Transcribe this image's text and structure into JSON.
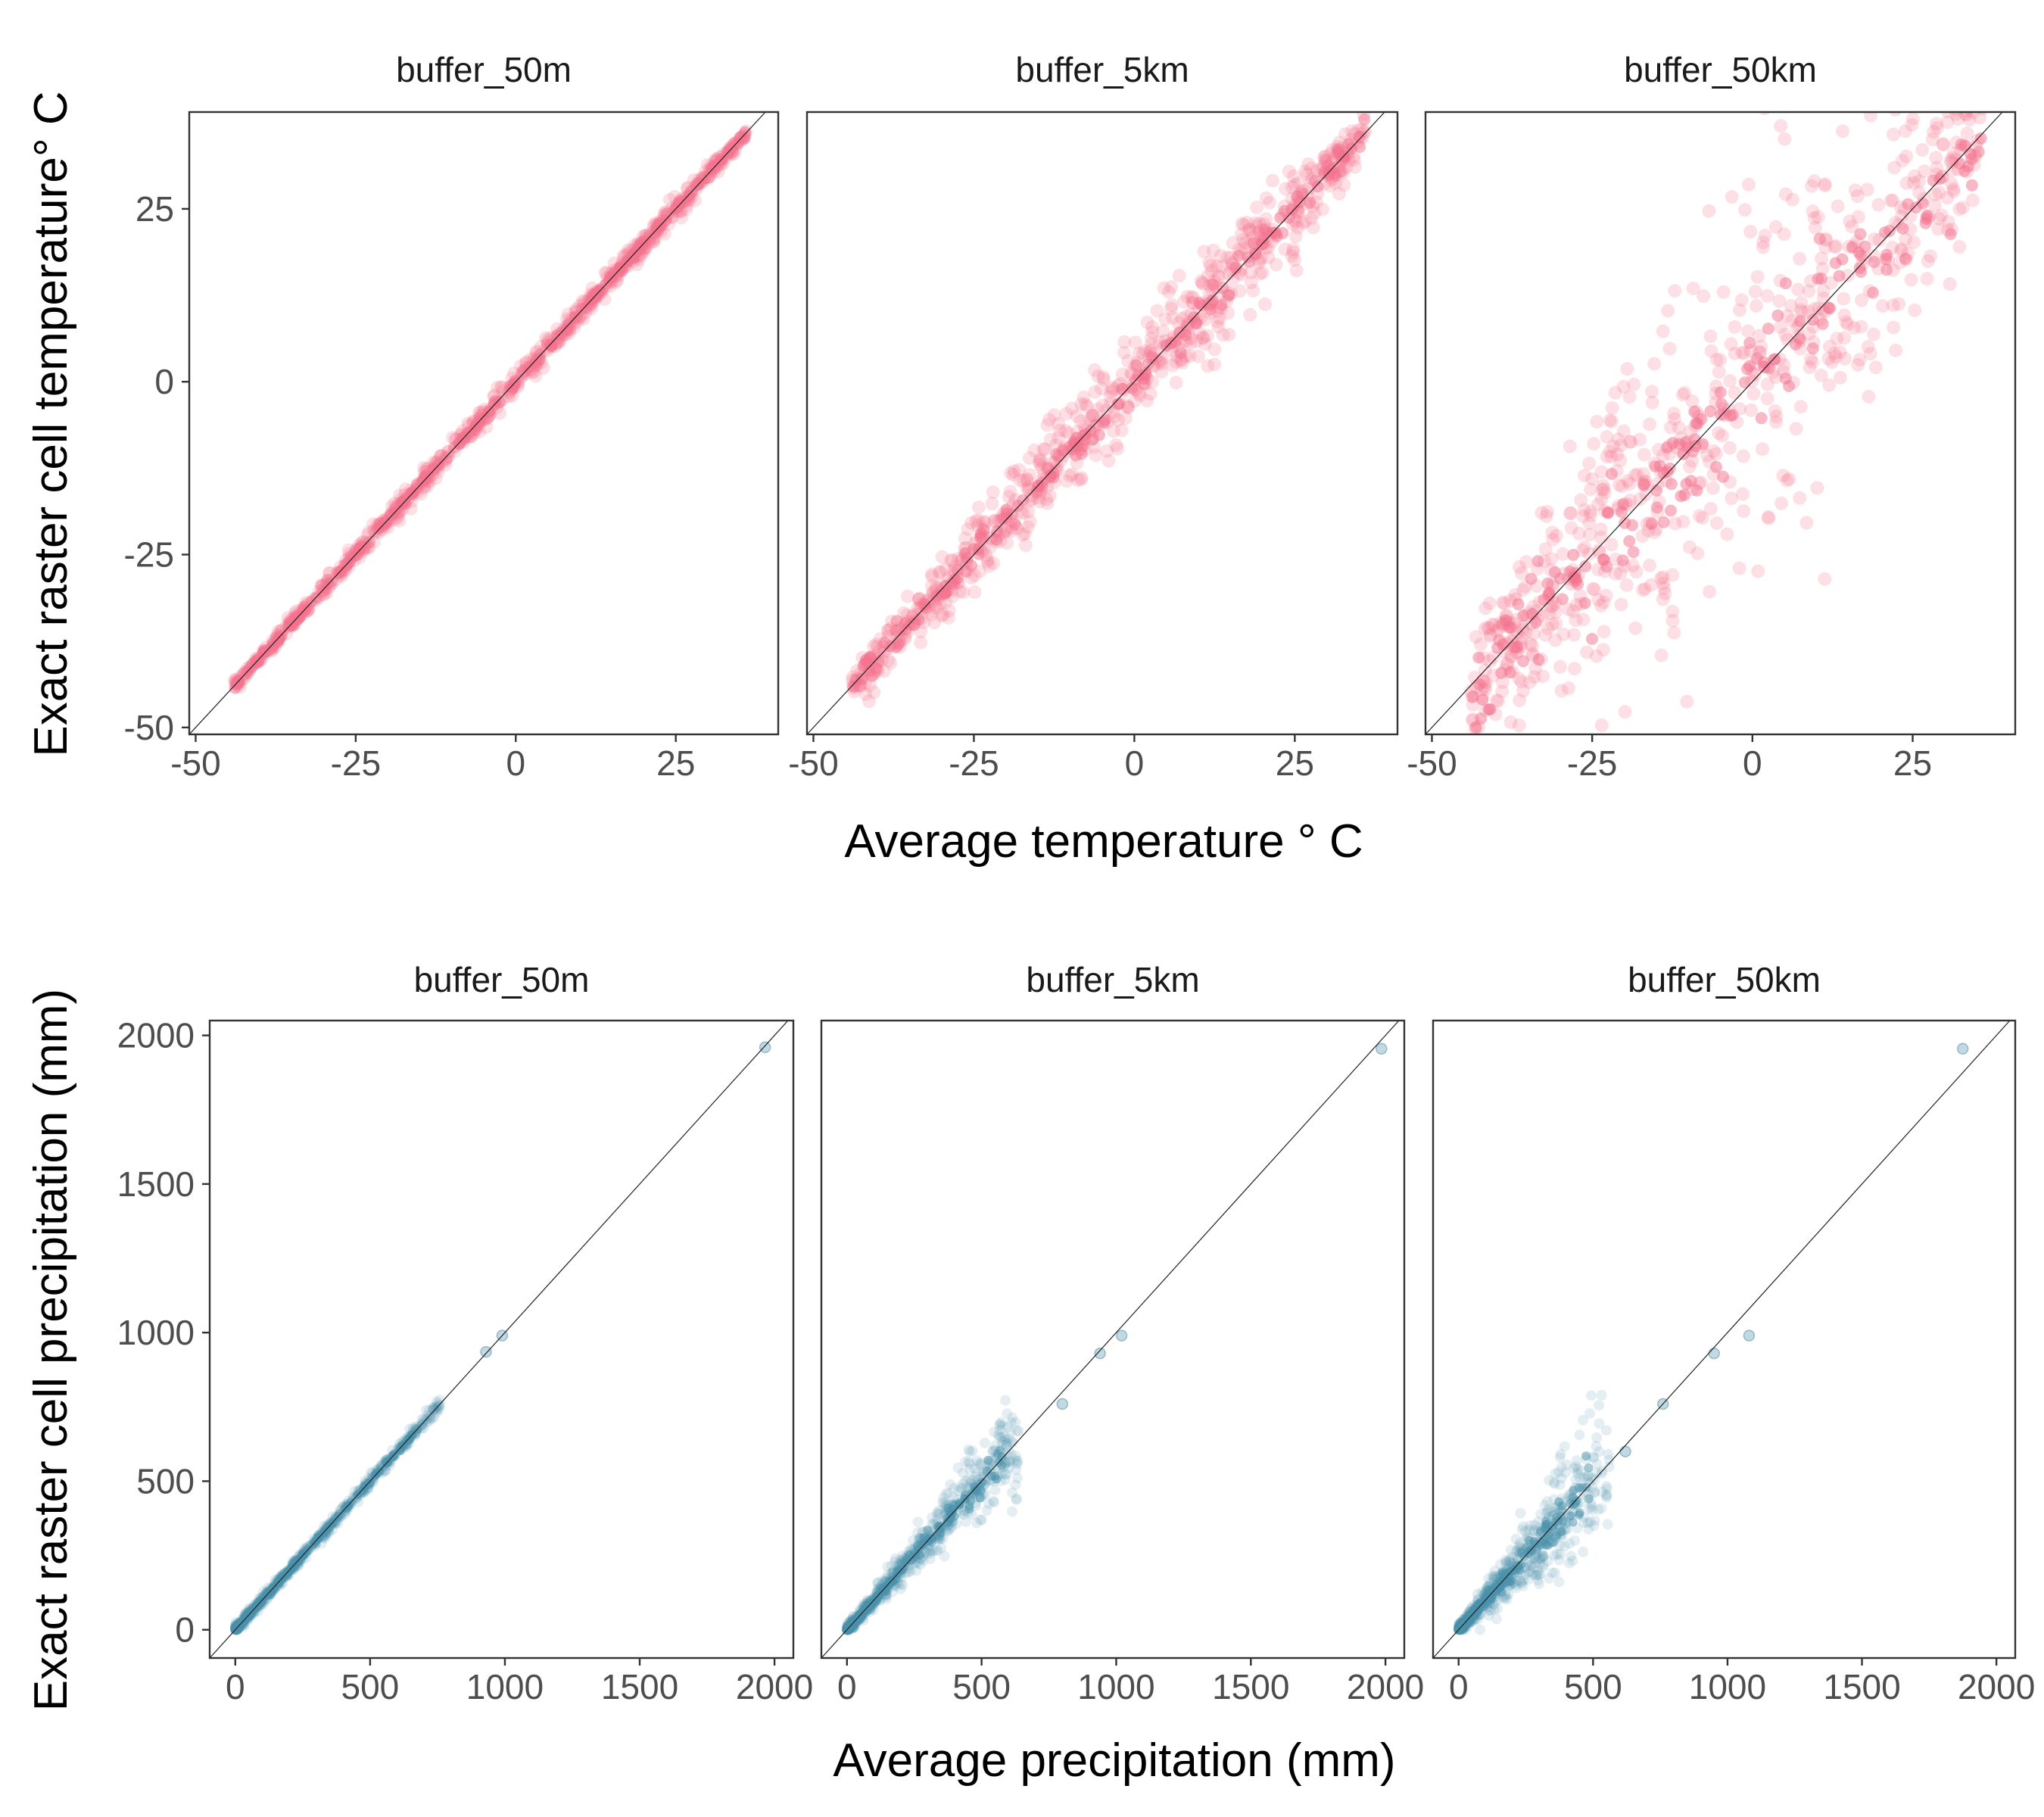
{
  "chart_data": [
    {
      "type": "scatter",
      "facets": [
        "buffer_50m",
        "buffer_5km",
        "buffer_50km"
      ],
      "xlabel": "Average temperature ° C",
      "ylabel": "Exact raster cell temperature° C",
      "xticks": [
        "-50",
        "-25",
        "0",
        "25"
      ],
      "yticks": [
        "-50",
        "-25",
        "0",
        "25"
      ],
      "xlim": [
        -51,
        41
      ],
      "ylim": [
        -51,
        39
      ],
      "color": "#F4728E",
      "reference_line": "y = x",
      "grid": false,
      "series": [
        {
          "facet": "buffer_50m",
          "x_range": [
            -44,
            36
          ],
          "spread": 0.8
        },
        {
          "facet": "buffer_5km",
          "x_range": [
            -44,
            36
          ],
          "spread": 3.5
        },
        {
          "facet": "buffer_50km",
          "x_range": [
            -44,
            36
          ],
          "spread": 12
        }
      ]
    },
    {
      "type": "scatter",
      "facets": [
        "buffer_50m",
        "buffer_5km",
        "buffer_50km"
      ],
      "xlabel": "Average precipitation (mm)",
      "ylabel": "Exact raster cell precipitation (mm)",
      "xticks": [
        "0",
        "500",
        "1000",
        "1500",
        "2000"
      ],
      "yticks": [
        "0",
        "500",
        "1000",
        "1500",
        "2000"
      ],
      "xlim": [
        -95,
        2070
      ],
      "ylim": [
        -95,
        2050
      ],
      "color": "#4A91AB",
      "reference_line": "y = x",
      "grid": false,
      "series": [
        {
          "facet": "buffer_50m",
          "x_range": [
            0,
            760
          ],
          "spread": 0.03,
          "outliers": [
            [
              1965,
              1960
            ],
            [
              990,
              990
            ],
            [
              930,
              935
            ]
          ]
        },
        {
          "facet": "buffer_5km",
          "x_range": [
            0,
            640
          ],
          "spread": 0.25,
          "outliers": [
            [
              1985,
              1955
            ],
            [
              1020,
              990
            ],
            [
              940,
              930
            ],
            [
              800,
              760
            ]
          ]
        },
        {
          "facet": "buffer_50km",
          "x_range": [
            0,
            560
          ],
          "spread": 0.45,
          "outliers": [
            [
              1875,
              1955
            ],
            [
              1080,
              990
            ],
            [
              950,
              930
            ],
            [
              760,
              760
            ],
            [
              620,
              600
            ]
          ]
        }
      ]
    }
  ]
}
